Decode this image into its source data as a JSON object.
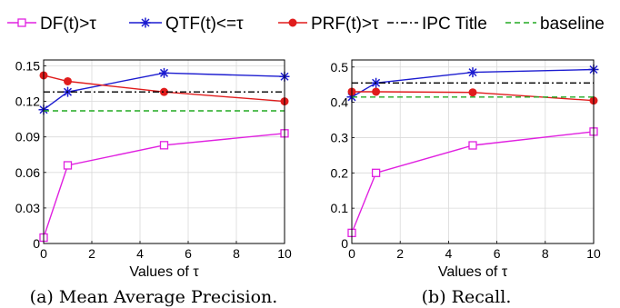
{
  "legend": [
    {
      "series": "DF",
      "label": "DF(t)>τ"
    },
    {
      "series": "QTF",
      "label": "QTF(t)<=τ"
    },
    {
      "series": "PRF",
      "label": "PRF(t)>τ"
    },
    {
      "series": "IPC",
      "label": "IPC Title"
    },
    {
      "series": "BASE",
      "label": "baseline"
    }
  ],
  "styles": {
    "DF": {
      "color": "#e020e0",
      "marker": "square",
      "dash": "none"
    },
    "QTF": {
      "color": "#1c1cd0",
      "marker": "asterisk",
      "dash": "none"
    },
    "PRF": {
      "color": "#e01c1c",
      "marker": "circle",
      "dash": "none"
    },
    "IPC": {
      "color": "#000000",
      "marker": "none",
      "dash": "dashdot"
    },
    "BASE": {
      "color": "#22aa22",
      "marker": "none",
      "dash": "dashed"
    }
  },
  "chart_data": [
    {
      "type": "line",
      "caption": "(a) Mean Average Precision.",
      "xlabel": "Values of τ",
      "ylabel": "",
      "xlim": [
        0,
        10
      ],
      "ylim": [
        0,
        0.155
      ],
      "xticks": [
        0,
        2,
        4,
        6,
        8,
        10
      ],
      "yticks": [
        0,
        0.03,
        0.06,
        0.09,
        0.12,
        0.15
      ],
      "ytick_labels": [
        "0",
        "0.03",
        "0.06",
        "0.09",
        "0.12",
        "0.15"
      ],
      "grid": true,
      "series": [
        {
          "name": "DF(t)>τ",
          "key": "DF",
          "x": [
            0,
            1,
            5,
            10
          ],
          "y": [
            0.005,
            0.066,
            0.083,
            0.093
          ]
        },
        {
          "name": "QTF(t)<=τ",
          "key": "QTF",
          "x": [
            0,
            1,
            5,
            10
          ],
          "y": [
            0.113,
            0.128,
            0.144,
            0.141
          ]
        },
        {
          "name": "PRF(t)>τ",
          "key": "PRF",
          "x": [
            0,
            1,
            5,
            10
          ],
          "y": [
            0.142,
            0.137,
            0.128,
            0.12
          ]
        },
        {
          "name": "IPC Title",
          "key": "IPC",
          "x": [
            0,
            10
          ],
          "y": [
            0.128,
            0.128
          ]
        },
        {
          "name": "baseline",
          "key": "BASE",
          "x": [
            0,
            10
          ],
          "y": [
            0.112,
            0.112
          ]
        }
      ]
    },
    {
      "type": "line",
      "caption": "(b) Recall.",
      "xlabel": "Values of τ",
      "ylabel": "",
      "xlim": [
        0,
        10
      ],
      "ylim": [
        0,
        0.52
      ],
      "xticks": [
        0,
        2,
        4,
        6,
        8,
        10
      ],
      "yticks": [
        0,
        0.1,
        0.2,
        0.3,
        0.4,
        0.5
      ],
      "ytick_labels": [
        "0",
        "0.1",
        "0.2",
        "0.3",
        "0.4",
        "0.5"
      ],
      "grid": true,
      "series": [
        {
          "name": "DF(t)>τ",
          "key": "DF",
          "x": [
            0,
            1,
            5,
            10
          ],
          "y": [
            0.03,
            0.2,
            0.278,
            0.317
          ]
        },
        {
          "name": "QTF(t)<=τ",
          "key": "QTF",
          "x": [
            0,
            1,
            5,
            10
          ],
          "y": [
            0.415,
            0.455,
            0.485,
            0.493
          ]
        },
        {
          "name": "PRF(t)>τ",
          "key": "PRF",
          "x": [
            0,
            1,
            5,
            10
          ],
          "y": [
            0.43,
            0.43,
            0.428,
            0.405
          ]
        },
        {
          "name": "IPC Title",
          "key": "IPC",
          "x": [
            0,
            10
          ],
          "y": [
            0.455,
            0.455
          ]
        },
        {
          "name": "baseline",
          "key": "BASE",
          "x": [
            0,
            10
          ],
          "y": [
            0.415,
            0.415
          ]
        }
      ]
    }
  ]
}
